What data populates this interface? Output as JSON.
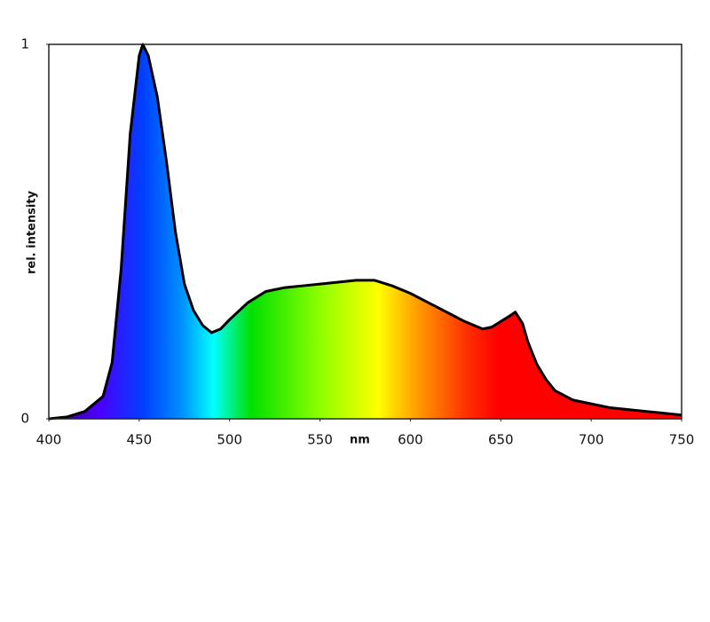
{
  "chart_data": {
    "type": "area",
    "x_label": "nm",
    "y_label": "rel. intensity",
    "x": [
      400,
      410,
      420,
      430,
      435,
      440,
      445,
      450,
      452,
      455,
      460,
      465,
      470,
      475,
      480,
      485,
      490,
      495,
      500,
      510,
      520,
      530,
      540,
      550,
      560,
      570,
      580,
      590,
      600,
      610,
      620,
      630,
      640,
      645,
      650,
      655,
      658,
      662,
      665,
      670,
      675,
      680,
      690,
      700,
      710,
      720,
      730,
      740,
      750
    ],
    "values": [
      0,
      0.005,
      0.02,
      0.06,
      0.15,
      0.4,
      0.76,
      0.97,
      1.0,
      0.97,
      0.86,
      0.69,
      0.5,
      0.36,
      0.29,
      0.25,
      0.23,
      0.24,
      0.265,
      0.31,
      0.34,
      0.35,
      0.355,
      0.36,
      0.365,
      0.37,
      0.37,
      0.355,
      0.335,
      0.31,
      0.285,
      0.26,
      0.24,
      0.245,
      0.26,
      0.275,
      0.285,
      0.255,
      0.205,
      0.145,
      0.105,
      0.075,
      0.05,
      0.04,
      0.03,
      0.025,
      0.02,
      0.015,
      0.01
    ],
    "xlim": [
      400,
      750
    ],
    "ylim": [
      0,
      1
    ],
    "xticks": [
      400,
      450,
      500,
      550,
      600,
      650,
      700,
      750
    ],
    "yticks": [
      0,
      1
    ],
    "x_label_position": 572,
    "grid": false
  }
}
